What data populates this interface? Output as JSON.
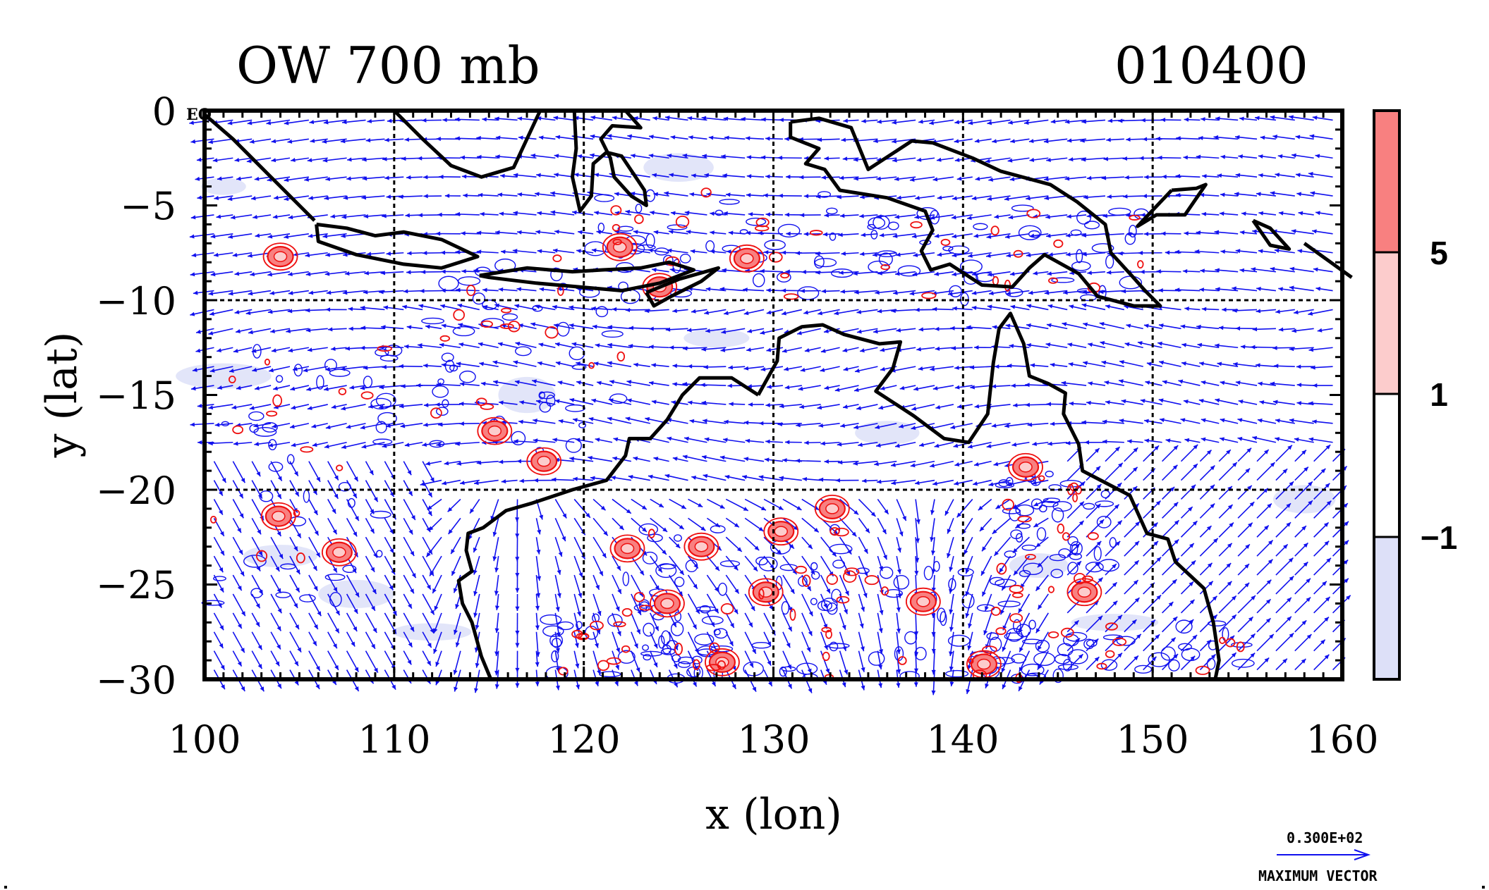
{
  "title_left": "OW 700 mb",
  "title_right": "010400",
  "x_axis": {
    "label": "x (lon)",
    "range": [
      100,
      160
    ],
    "ticks": [
      "100",
      "110",
      "120",
      "130",
      "140",
      "150",
      "160"
    ]
  },
  "y_axis": {
    "label": "y (lat)",
    "range": [
      -30,
      0
    ],
    "ticks": [
      "0",
      "−5",
      "−10",
      "−15",
      "−20",
      "−25",
      "−30"
    ]
  },
  "eq_marker": "EQ",
  "colorbar": {
    "ticks": [
      "5",
      "1",
      "−1"
    ],
    "bands": [
      {
        "level": "> 5",
        "color": "#f88080"
      },
      {
        "level": "1 – 5",
        "color": "#fccccc"
      },
      {
        "level": "−1 – 1",
        "color": "#ffffff"
      },
      {
        "level": "< −1",
        "color": "#dde0f8"
      }
    ]
  },
  "legend": {
    "value": "0.300E+02",
    "label": "MAXIMUM VECTOR"
  },
  "colors": {
    "vectors": "#1010ee",
    "positive_contours": "#ee1010",
    "negative_fill": "#dde0f8",
    "coast": "#000000"
  },
  "map_data": {
    "type": "map",
    "field": "Okubo-Weiss parameter at 700 mb with wind vectors",
    "region": {
      "lon": [
        100,
        160
      ],
      "lat": [
        -30,
        0
      ]
    },
    "gridlines_lon": [
      110,
      120,
      130,
      140,
      150
    ],
    "gridlines_lat": [
      -10,
      -20
    ],
    "positive_centers": [
      {
        "lon": 104,
        "lat": -7.7
      },
      {
        "lon": 121.9,
        "lat": -7.2
      },
      {
        "lon": 124,
        "lat": -9.3
      },
      {
        "lon": 128.6,
        "lat": -7.8
      },
      {
        "lon": 115.3,
        "lat": -16.9
      },
      {
        "lon": 117.9,
        "lat": -18.5
      },
      {
        "lon": 103.9,
        "lat": -21.4
      },
      {
        "lon": 107.1,
        "lat": -23.3
      },
      {
        "lon": 143.3,
        "lat": -18.8
      },
      {
        "lon": 146.4,
        "lat": -25.4
      },
      {
        "lon": 122.3,
        "lat": -23.1
      },
      {
        "lon": 126.2,
        "lat": -23.0
      },
      {
        "lon": 124.4,
        "lat": -26
      },
      {
        "lon": 129.6,
        "lat": -25.4
      },
      {
        "lon": 130.4,
        "lat": -22.2
      },
      {
        "lon": 137.9,
        "lat": -25.9
      },
      {
        "lon": 141.1,
        "lat": -29.2
      },
      {
        "lon": 127.3,
        "lat": -29.1
      },
      {
        "lon": 133.1,
        "lat": -21
      }
    ],
    "coastlines": [
      [
        [
          100,
          -0.2
        ],
        [
          101.5,
          -1.5
        ],
        [
          103,
          -3
        ],
        [
          104.5,
          -4.5
        ],
        [
          105.8,
          -5.8
        ]
      ],
      [
        [
          105.9,
          -6
        ],
        [
          107.5,
          -6.2
        ],
        [
          109,
          -6.6
        ],
        [
          110.5,
          -6.4
        ],
        [
          112.5,
          -6.8
        ],
        [
          114.4,
          -7.7
        ],
        [
          112.5,
          -8.3
        ],
        [
          110.5,
          -8.1
        ],
        [
          108,
          -7.6
        ],
        [
          106,
          -6.9
        ],
        [
          105.9,
          -6
        ]
      ],
      [
        [
          114.5,
          -8.7
        ],
        [
          117,
          -8.3
        ],
        [
          119.4,
          -8.5
        ],
        [
          121,
          -8.4
        ],
        [
          123,
          -8.3
        ],
        [
          124.5,
          -8
        ],
        [
          125.8,
          -8.4
        ],
        [
          124,
          -9.1
        ],
        [
          122,
          -9.5
        ],
        [
          119.8,
          -9.3
        ],
        [
          117.5,
          -9.1
        ],
        [
          115,
          -8.8
        ],
        [
          114.5,
          -8.7
        ]
      ],
      [
        [
          123.3,
          -9.6
        ],
        [
          125,
          -8.9
        ],
        [
          127.1,
          -8.3
        ],
        [
          126.2,
          -9
        ],
        [
          124.6,
          -9.8
        ],
        [
          123.7,
          -10.3
        ],
        [
          123.3,
          -9.6
        ]
      ],
      [
        [
          110,
          0
        ],
        [
          111.5,
          -1.5
        ],
        [
          113,
          -2.9
        ],
        [
          114.6,
          -3.5
        ],
        [
          116.3,
          -3
        ],
        [
          117,
          -1.5
        ],
        [
          117.7,
          0
        ]
      ],
      [
        [
          119.5,
          0
        ],
        [
          119.6,
          -2
        ],
        [
          119.4,
          -3.5
        ],
        [
          119.8,
          -5.3
        ],
        [
          120.4,
          -4.5
        ],
        [
          120.5,
          -2.8
        ],
        [
          121.2,
          -2.2
        ],
        [
          122,
          -2.4
        ],
        [
          123.2,
          -4.2
        ],
        [
          123.3,
          -5
        ],
        [
          122.5,
          -4.5
        ],
        [
          121.6,
          -3.5
        ],
        [
          121.4,
          -2.5
        ],
        [
          120.9,
          -1.5
        ],
        [
          121.5,
          -0.8
        ],
        [
          123,
          -0.9
        ],
        [
          122.2,
          0
        ]
      ],
      [
        [
          130.9,
          -0.6
        ],
        [
          132.4,
          -0.4
        ],
        [
          134.1,
          -0.9
        ],
        [
          135,
          -3.1
        ],
        [
          137.3,
          -1.6
        ],
        [
          138.4,
          -1.7
        ],
        [
          140.5,
          -2.5
        ],
        [
          142,
          -3.2
        ],
        [
          144.6,
          -3.9
        ],
        [
          146,
          -4.8
        ],
        [
          147.5,
          -6
        ],
        [
          147.8,
          -7.5
        ],
        [
          148.8,
          -8.6
        ],
        [
          149.6,
          -9.5
        ],
        [
          150.4,
          -10.3
        ],
        [
          149,
          -10.3
        ],
        [
          147.1,
          -9.8
        ],
        [
          146.1,
          -8.6
        ],
        [
          144.3,
          -7.6
        ],
        [
          143.5,
          -8.3
        ],
        [
          142.6,
          -9.3
        ],
        [
          141,
          -9.2
        ],
        [
          139.3,
          -8.1
        ],
        [
          138.3,
          -8.4
        ],
        [
          137.8,
          -7.4
        ],
        [
          138.4,
          -6.3
        ],
        [
          138,
          -5.3
        ],
        [
          136,
          -4.6
        ],
        [
          133.5,
          -4.2
        ],
        [
          132.7,
          -3.1
        ],
        [
          131.7,
          -2.8
        ],
        [
          132.4,
          -2
        ],
        [
          130.9,
          -1.4
        ],
        [
          130.9,
          -0.6
        ]
      ],
      [
        [
          151,
          -4.2
        ],
        [
          152.3,
          -4.1
        ],
        [
          152.8,
          -3.9
        ],
        [
          151.7,
          -5.5
        ],
        [
          150.2,
          -5.5
        ],
        [
          149.2,
          -6.1
        ],
        [
          151,
          -4.2
        ]
      ],
      [
        [
          155.3,
          -5.8
        ],
        [
          156.2,
          -6.2
        ],
        [
          157.2,
          -7.3
        ],
        [
          156.2,
          -7.1
        ],
        [
          155.3,
          -5.8
        ]
      ],
      [
        [
          158,
          -7
        ],
        [
          160.5,
          -8.8
        ]
      ],
      [
        [
          129.2,
          -15
        ],
        [
          130.2,
          -13.2
        ],
        [
          130.3,
          -12
        ],
        [
          131.5,
          -11.4
        ],
        [
          132.6,
          -11.3
        ],
        [
          133.7,
          -11.8
        ],
        [
          135.6,
          -12.3
        ],
        [
          136.7,
          -12.2
        ],
        [
          136.3,
          -13.6
        ],
        [
          135.4,
          -14.8
        ],
        [
          137.4,
          -16.1
        ],
        [
          139,
          -17.3
        ],
        [
          140.3,
          -17.5
        ],
        [
          141.3,
          -16
        ],
        [
          141.6,
          -13.3
        ],
        [
          141.9,
          -11.5
        ],
        [
          142.5,
          -10.7
        ],
        [
          143.2,
          -12.3
        ],
        [
          143.5,
          -14
        ],
        [
          144.5,
          -14.4
        ],
        [
          145.4,
          -14.9
        ],
        [
          145.3,
          -16
        ],
        [
          146.1,
          -17.6
        ],
        [
          146.3,
          -19
        ],
        [
          148.8,
          -20.3
        ],
        [
          149.7,
          -22.3
        ],
        [
          150.8,
          -22.6
        ],
        [
          151.2,
          -23.8
        ],
        [
          152.7,
          -25.2
        ],
        [
          153.2,
          -27
        ],
        [
          153.5,
          -29
        ],
        [
          153.3,
          -30
        ]
      ],
      [
        [
          129.2,
          -15
        ],
        [
          127.8,
          -14.1
        ],
        [
          126.1,
          -14.1
        ],
        [
          125.2,
          -15
        ],
        [
          124.4,
          -16.3
        ],
        [
          123.5,
          -17.3
        ],
        [
          122.4,
          -17.3
        ],
        [
          122.2,
          -18.2
        ],
        [
          121.2,
          -19.5
        ],
        [
          119.4,
          -20
        ],
        [
          117.3,
          -20.7
        ],
        [
          115.9,
          -21.1
        ],
        [
          114.7,
          -22
        ],
        [
          113.9,
          -22.3
        ],
        [
          113.8,
          -23.2
        ],
        [
          114.1,
          -24.3
        ],
        [
          113.4,
          -24.8
        ],
        [
          113.6,
          -26
        ],
        [
          114.1,
          -27
        ],
        [
          114.6,
          -28.8
        ],
        [
          115.1,
          -30
        ]
      ]
    ]
  }
}
